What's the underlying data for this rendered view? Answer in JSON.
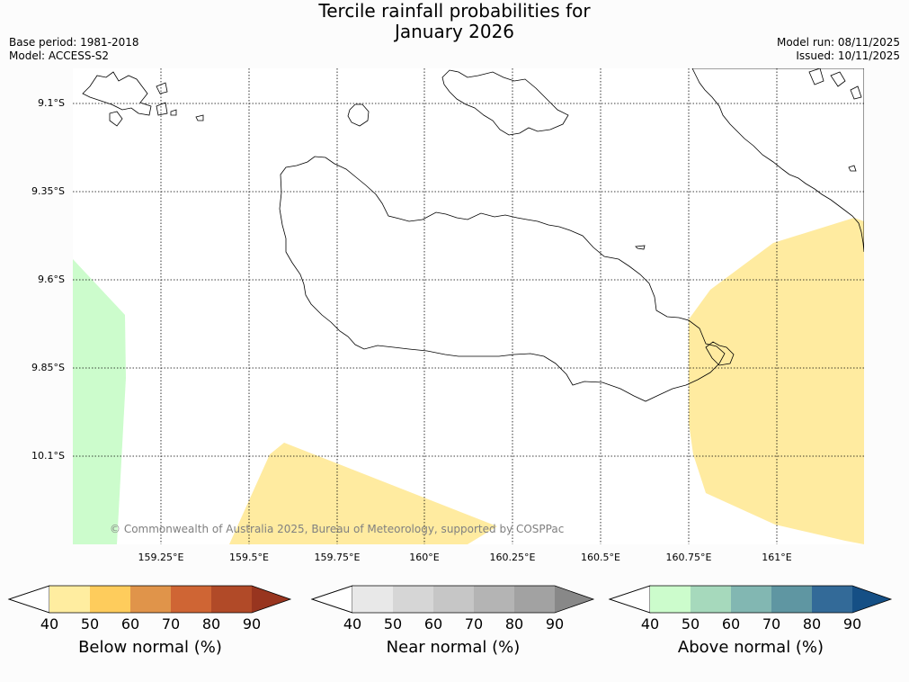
{
  "title": {
    "line1": "Tercile rainfall probabilities for",
    "line2": "January 2026"
  },
  "meta": {
    "base_period": "Base period: 1981-2018",
    "model": "Model: ACCESS-S2",
    "model_run": "Model run: 08/11/2025",
    "issued": "Issued: 10/11/2025"
  },
  "map": {
    "lat_labels": [
      "9.1°S",
      "9.35°S",
      "9.6°S",
      "9.85°S",
      "10.1°S"
    ],
    "lon_labels": [
      "159.25°E",
      "159.5°E",
      "159.75°E",
      "160°E",
      "160.25°E",
      "160.5°E",
      "160.75°E",
      "161°E"
    ],
    "copyright": "© Commonwealth of Australia 2025, Bureau of Meteorology, supported by COSPPac"
  },
  "colorbars": [
    {
      "title": "Below normal (%)",
      "ticks": [
        "40",
        "50",
        "60",
        "70",
        "80",
        "90"
      ],
      "colors": [
        "#ffeda0",
        "#fecc5c",
        "#e0944a",
        "#cf6534",
        "#b14a28",
        "#98351f"
      ]
    },
    {
      "title": "Near normal (%)",
      "ticks": [
        "40",
        "50",
        "60",
        "70",
        "80",
        "90"
      ],
      "colors": [
        "#e8e8e8",
        "#d6d6d6",
        "#c6c6c6",
        "#b4b4b4",
        "#a2a2a2",
        "#888888"
      ]
    },
    {
      "title": "Above normal (%)",
      "ticks": [
        "40",
        "50",
        "60",
        "70",
        "80",
        "90"
      ],
      "colors": [
        "#ccfccc",
        "#a6d9bc",
        "#82b7b2",
        "#5f96a2",
        "#336a98",
        "#154f85"
      ]
    }
  ],
  "colors": {
    "below_fill": "#ffeba0",
    "above_fill": "#ccfccc"
  }
}
